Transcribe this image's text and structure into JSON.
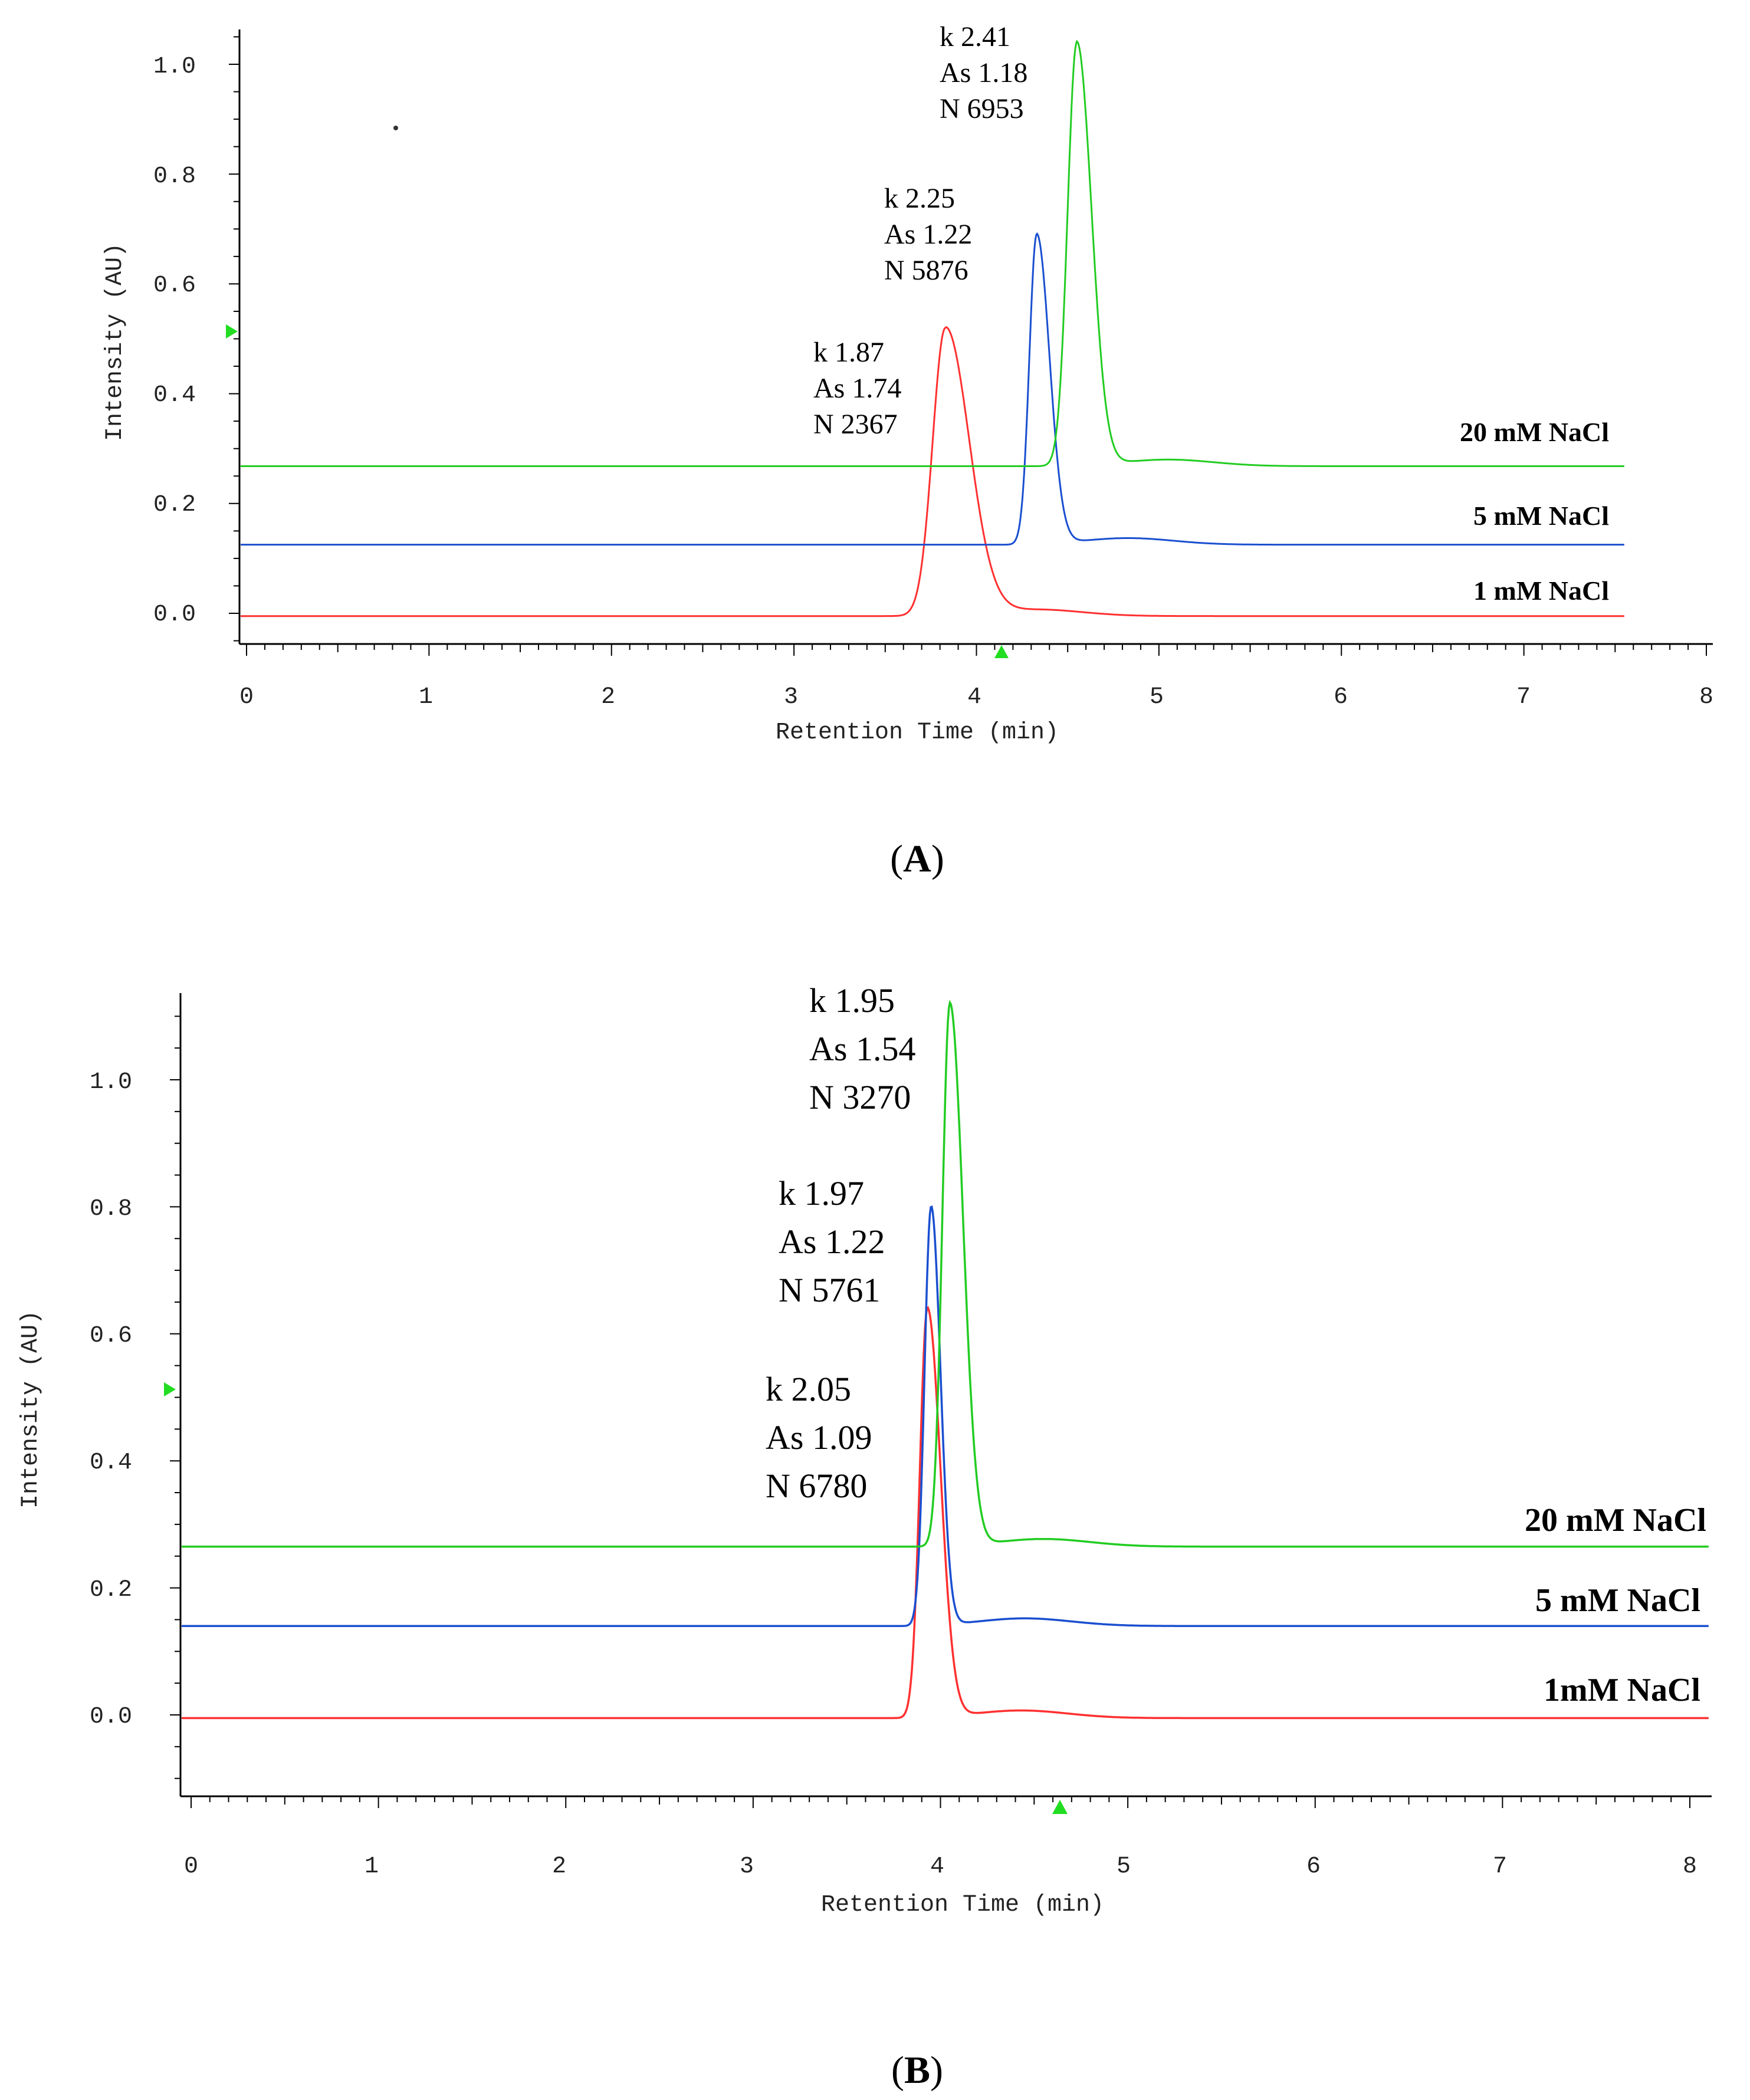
{
  "chart_data": [
    {
      "type": "line",
      "panel_label": "A",
      "xlabel": "Retention Time (min)",
      "ylabel": "Intensity (AU)",
      "xlim": [
        0,
        8
      ],
      "ylim": [
        -0.05,
        1.07
      ],
      "xticks": [
        "0",
        "1",
        "2",
        "3",
        "4",
        "5",
        "6",
        "7",
        "8"
      ],
      "yticks": [
        "0.0",
        "0.2",
        "0.4",
        "0.6",
        "0.8",
        "1.0"
      ],
      "series": [
        {
          "name": "1 mM NaCl",
          "color": "#ff3030",
          "baseline": -0.005,
          "x_end": 7.55,
          "peaks": [
            {
              "t": 3.83,
              "h": 0.52,
              "wl": 0.07,
              "wr": 0.13
            }
          ],
          "annotation": [
            "k 1.87",
            "As 1.74",
            "N 2367"
          ]
        },
        {
          "name": "5 mM NaCl",
          "color": "#1a4fd0",
          "baseline": 0.125,
          "x_end": 7.55,
          "peaks": [
            {
              "t": 4.33,
              "h": 0.69,
              "wl": 0.04,
              "wr": 0.07
            }
          ],
          "annotation": [
            "k 2.25",
            "As 1.22",
            "N 5876"
          ]
        },
        {
          "name": "20 mM NaCl",
          "color": "#22cc22",
          "baseline": 0.268,
          "x_end": 7.55,
          "peaks": [
            {
              "t": 4.55,
              "h": 1.04,
              "wl": 0.05,
              "wr": 0.08
            }
          ],
          "annotation": [
            "k 2.41",
            "As 1.18",
            "N 6953"
          ]
        }
      ]
    },
    {
      "type": "line",
      "panel_label": "B",
      "xlabel": "Retention Time (min)",
      "ylabel": "Intensity (AU)",
      "xlim": [
        0,
        8
      ],
      "ylim": [
        -0.13,
        1.13
      ],
      "xticks": [
        "0",
        "1",
        "2",
        "3",
        "4",
        "5",
        "6",
        "7",
        "8"
      ],
      "yticks": [
        "0.0",
        "0.2",
        "0.4",
        "0.6",
        "0.8",
        "1.0"
      ],
      "series": [
        {
          "name": "1mM NaCl",
          "color": "#ff3030",
          "baseline": -0.005,
          "x_end": 8.1,
          "peaks": [
            {
              "t": 3.93,
              "h": 0.64,
              "wl": 0.04,
              "wr": 0.07
            }
          ],
          "annotation": [
            "k 2.05",
            "As 1.09",
            "N 6780"
          ]
        },
        {
          "name": "5 mM NaCl",
          "color": "#1a4fd0",
          "baseline": 0.14,
          "x_end": 8.1,
          "peaks": [
            {
              "t": 3.95,
              "h": 0.8,
              "wl": 0.035,
              "wr": 0.05
            }
          ],
          "annotation": [
            "k 1.97",
            "As 1.22",
            "N 5761"
          ]
        },
        {
          "name": "20 mM NaCl",
          "color": "#22cc22",
          "baseline": 0.265,
          "x_end": 8.1,
          "peaks": [
            {
              "t": 4.05,
              "h": 1.12,
              "wl": 0.04,
              "wr": 0.07
            }
          ],
          "annotation": [
            "k 1.95",
            "As 1.54",
            "N 3270"
          ]
        }
      ]
    }
  ]
}
